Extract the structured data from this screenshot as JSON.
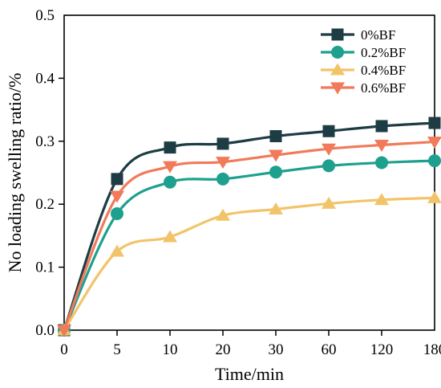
{
  "chart_data": {
    "type": "line",
    "title": "",
    "xlabel": "Time/min",
    "ylabel": "No loading swelling ratio/%",
    "categories": [
      "0",
      "5",
      "10",
      "20",
      "30",
      "60",
      "120",
      "180"
    ],
    "ylim": [
      0.0,
      0.5
    ],
    "yticks": [
      "0.0",
      "0.1",
      "0.2",
      "0.3",
      "0.4",
      "0.5"
    ],
    "grid": false,
    "legend_position": "top-right",
    "series": [
      {
        "name": "0%BF",
        "color": "#1d3c44",
        "marker": "square",
        "values": [
          0.0,
          0.24,
          0.29,
          0.296,
          0.308,
          0.316,
          0.324,
          0.329
        ]
      },
      {
        "name": "0.2%BF",
        "color": "#1ea08e",
        "marker": "circle",
        "values": [
          0.0,
          0.185,
          0.235,
          0.24,
          0.251,
          0.261,
          0.266,
          0.269
        ]
      },
      {
        "name": "0.4%BF",
        "color": "#f2c46a",
        "marker": "triangle-up",
        "values": [
          0.0,
          0.125,
          0.148,
          0.182,
          0.192,
          0.201,
          0.207,
          0.21
        ]
      },
      {
        "name": "0.6%BF",
        "color": "#f07a5a",
        "marker": "triangle-down",
        "values": [
          0.0,
          0.213,
          0.26,
          0.267,
          0.278,
          0.288,
          0.294,
          0.299
        ]
      }
    ]
  }
}
